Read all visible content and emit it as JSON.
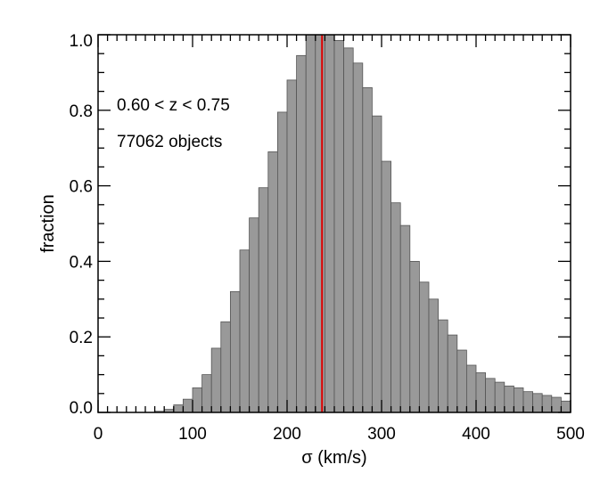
{
  "chart_data": {
    "type": "bar",
    "title": "",
    "xlabel": "σ (km/s)",
    "ylabel": "fraction",
    "xlim": [
      0,
      500
    ],
    "ylim": [
      0,
      1.0
    ],
    "x_ticks": [
      "0",
      "100",
      "200",
      "300",
      "400",
      "500"
    ],
    "y_ticks": [
      "0.0",
      "0.2",
      "0.4",
      "0.6",
      "0.8",
      "1.0"
    ],
    "bin_width": 10,
    "bin_starts": [
      0,
      10,
      20,
      30,
      40,
      50,
      60,
      70,
      80,
      90,
      100,
      110,
      120,
      130,
      140,
      150,
      160,
      170,
      180,
      190,
      200,
      210,
      220,
      230,
      240,
      250,
      260,
      270,
      280,
      290,
      300,
      310,
      320,
      330,
      340,
      350,
      360,
      370,
      380,
      390,
      400,
      410,
      420,
      430,
      440,
      450,
      460,
      470,
      480,
      490
    ],
    "values": [
      0.0,
      0.0,
      0.0,
      0.0,
      0.0,
      0.0,
      0.003,
      0.008,
      0.02,
      0.035,
      0.065,
      0.1,
      0.17,
      0.24,
      0.32,
      0.43,
      0.515,
      0.595,
      0.69,
      0.795,
      0.88,
      0.945,
      1.0,
      1.0,
      1.0,
      0.985,
      0.965,
      0.925,
      0.86,
      0.785,
      0.665,
      0.555,
      0.495,
      0.4,
      0.345,
      0.3,
      0.245,
      0.205,
      0.165,
      0.125,
      0.105,
      0.09,
      0.08,
      0.07,
      0.065,
      0.055,
      0.05,
      0.045,
      0.04,
      0.03
    ],
    "median_line": {
      "x": 237,
      "color": "#dd0000"
    },
    "annotations": [
      "0.60 < z < 0.75",
      "77062 objects"
    ],
    "bar_color": "#999999",
    "grid": false
  }
}
